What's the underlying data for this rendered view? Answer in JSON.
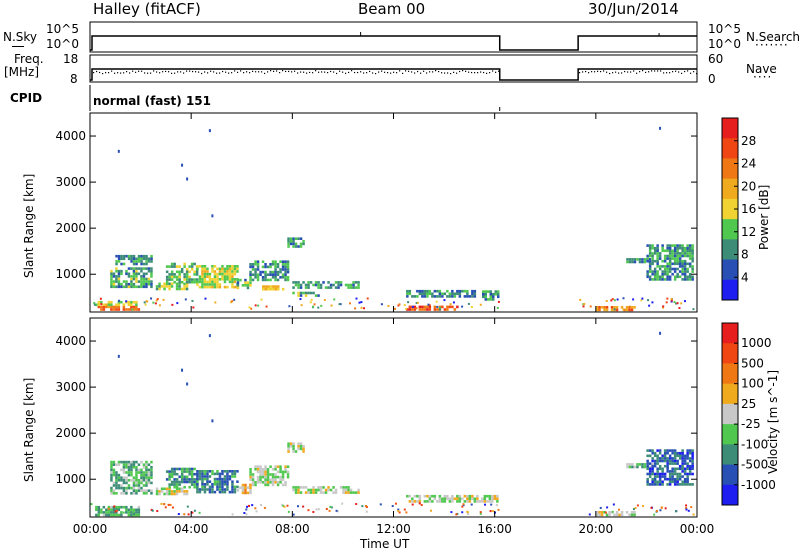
{
  "header": {
    "station": "Halley (fitACF)",
    "beam": "Beam 00",
    "date": "30/Jun/2014"
  },
  "strip_labels": {
    "nsky": "N.Sky",
    "nsky_hi": "10^5",
    "nsky_lo": "10^0",
    "nsearch": "N.Search",
    "nsearch_hi": "10^5",
    "nsearch_lo": "10^0",
    "freq": "Freq.",
    "freq_unit": "[MHz]",
    "freq_hi": "18",
    "freq_lo": "8",
    "nave": "Nave",
    "nave_hi": "60",
    "nave_lo": "0",
    "cpid": "CPID",
    "cpid_value": "normal (fast) 151"
  },
  "colors": {
    "power": [
      "#1e1ef0",
      "#2850b4",
      "#3c8c78",
      "#50c850",
      "#f0d232",
      "#f0aa1e",
      "#f07814",
      "#f04614",
      "#e61e1e"
    ],
    "velocity": [
      "#e61e1e",
      "#f04614",
      "#f07814",
      "#f0aa1e",
      "#c8c8c8",
      "#50c850",
      "#3c8c78",
      "#2850b4",
      "#1e1ef0"
    ]
  },
  "chart_data": [
    {
      "type": "heatmap",
      "title": "",
      "xlabel": "Time UT",
      "ylabel": "Slant Range [km]",
      "xlim": [
        "00:00",
        "24:00"
      ],
      "ylim": [
        180,
        4500
      ],
      "x_ticks": [
        "00:00",
        "04:00",
        "08:00",
        "12:00",
        "16:00",
        "20:00",
        "00:00"
      ],
      "y_ticks": [
        "1000",
        "2000",
        "3000",
        "4000"
      ],
      "colorbar": {
        "label": "Power [dB]",
        "ticks": [
          "4",
          "8",
          "12",
          "16",
          "20",
          "24",
          "28"
        ],
        "range": [
          0,
          30
        ]
      },
      "regions": [
        {
          "t0": 0.2,
          "t1": 1.9,
          "r0": 250,
          "r1": 320,
          "value": 22
        },
        {
          "t0": 0.2,
          "t1": 1.8,
          "r0": 320,
          "r1": 420,
          "value": 14
        },
        {
          "t0": 0.8,
          "t1": 2.4,
          "r0": 700,
          "r1": 1150,
          "value": 10
        },
        {
          "t0": 1.0,
          "t1": 2.4,
          "r0": 1250,
          "r1": 1420,
          "value": 8
        },
        {
          "t0": 2.6,
          "t1": 3.8,
          "r0": 700,
          "r1": 820,
          "value": 12
        },
        {
          "t0": 3.0,
          "t1": 4.2,
          "r0": 850,
          "r1": 1250,
          "value": 11
        },
        {
          "t0": 4.2,
          "t1": 5.8,
          "r0": 700,
          "r1": 1200,
          "value": 14
        },
        {
          "t0": 5.8,
          "t1": 6.3,
          "r0": 700,
          "r1": 900,
          "value": 10
        },
        {
          "t0": 6.3,
          "t1": 7.8,
          "r0": 850,
          "r1": 1300,
          "value": 9
        },
        {
          "t0": 7.8,
          "t1": 8.4,
          "r0": 1600,
          "r1": 1800,
          "value": 8
        },
        {
          "t0": 6.8,
          "t1": 7.6,
          "r0": 680,
          "r1": 760,
          "value": 16
        },
        {
          "t0": 8.0,
          "t1": 10.6,
          "r0": 700,
          "r1": 850,
          "value": 9
        },
        {
          "t0": 8.0,
          "t1": 9.0,
          "r0": 560,
          "r1": 620,
          "value": 10
        },
        {
          "t0": 12.5,
          "t1": 15.2,
          "r0": 500,
          "r1": 660,
          "value": 8
        },
        {
          "t0": 15.5,
          "t1": 16.1,
          "r0": 450,
          "r1": 650,
          "value": 8
        },
        {
          "t0": 12.5,
          "t1": 14.5,
          "r0": 240,
          "r1": 320,
          "value": 24
        },
        {
          "t0": 20.0,
          "t1": 21.5,
          "r0": 250,
          "r1": 310,
          "value": 21
        },
        {
          "t0": 21.2,
          "t1": 22.2,
          "r0": 1250,
          "r1": 1350,
          "value": 8
        },
        {
          "t0": 22.0,
          "t1": 23.8,
          "r0": 900,
          "r1": 1650,
          "value": 9
        }
      ]
    },
    {
      "type": "heatmap",
      "title": "",
      "xlabel": "Time UT",
      "ylabel": "Slant Range [km]",
      "xlim": [
        "00:00",
        "24:00"
      ],
      "ylim": [
        180,
        4500
      ],
      "x_ticks": [
        "00:00",
        "04:00",
        "08:00",
        "12:00",
        "16:00",
        "20:00",
        "00:00"
      ],
      "y_ticks": [
        "1000",
        "2000",
        "3000",
        "4000"
      ],
      "colorbar": {
        "label": "Velocity [m s^-1]",
        "ticks": [
          "1000",
          "500",
          "100",
          "25",
          "-25",
          "-100",
          "-500",
          "-1000"
        ],
        "range": [
          -1000,
          1000
        ]
      },
      "regions": [
        {
          "t0": 0.2,
          "t1": 1.9,
          "r0": 250,
          "r1": 420,
          "value": -300
        },
        {
          "t0": 0.8,
          "t1": 2.4,
          "r0": 700,
          "r1": 1400,
          "value": -250
        },
        {
          "t0": 2.6,
          "t1": 3.8,
          "r0": 700,
          "r1": 820,
          "value": 10
        },
        {
          "t0": 3.0,
          "t1": 4.2,
          "r0": 850,
          "r1": 1250,
          "value": -400
        },
        {
          "t0": 4.2,
          "t1": 5.8,
          "r0": 700,
          "r1": 1200,
          "value": -500
        },
        {
          "t0": 5.8,
          "t1": 6.3,
          "r0": 700,
          "r1": 900,
          "value": 200
        },
        {
          "t0": 6.3,
          "t1": 7.8,
          "r0": 850,
          "r1": 1300,
          "value": -80
        },
        {
          "t0": 7.8,
          "t1": 8.4,
          "r0": 1600,
          "r1": 1800,
          "value": -80
        },
        {
          "t0": 8.0,
          "t1": 10.6,
          "r0": 700,
          "r1": 850,
          "value": -60
        },
        {
          "t0": 12.5,
          "t1": 16.1,
          "r0": 500,
          "r1": 660,
          "value": -40
        },
        {
          "t0": 20.0,
          "t1": 21.5,
          "r0": 250,
          "r1": 310,
          "value": 5
        },
        {
          "t0": 21.2,
          "t1": 22.2,
          "r0": 1250,
          "r1": 1350,
          "value": -150
        },
        {
          "t0": 22.0,
          "t1": 23.8,
          "r0": 900,
          "r1": 1650,
          "value": -600
        }
      ]
    }
  ],
  "strip_data": {
    "gaps": [
      {
        "t0": 16.2,
        "t1": 19.3
      }
    ]
  }
}
